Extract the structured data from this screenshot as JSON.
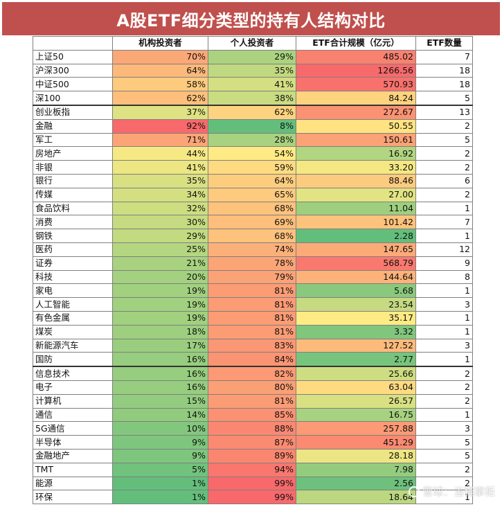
{
  "title": "A股ETF细分类型的持有人结构对比",
  "watermark": "雪球：当铺掌柜",
  "colors": {
    "low": "#63be7b",
    "mid": "#ffeb84",
    "high": "#f8696b"
  },
  "chart_data": {
    "type": "table",
    "title": "A股ETF细分类型的持有人结构对比",
    "columns": [
      "",
      "机构投资者",
      "个人投资者",
      "ETF合计规模（亿元）",
      "ETF数量"
    ],
    "rows": [
      {
        "name": "上证50",
        "inst": "70%",
        "retail": "29%",
        "scale": "485.02",
        "count": "7"
      },
      {
        "name": "沪深300",
        "inst": "64%",
        "retail": "35%",
        "scale": "1266.56",
        "count": "18"
      },
      {
        "name": "中证500",
        "inst": "58%",
        "retail": "41%",
        "scale": "570.93",
        "count": "18"
      },
      {
        "name": "深100",
        "inst": "62%",
        "retail": "38%",
        "scale": "84.24",
        "count": "5"
      },
      {
        "name": "创业板指",
        "inst": "37%",
        "retail": "62%",
        "scale": "272.67",
        "count": "13"
      },
      {
        "name": "金融",
        "inst": "92%",
        "retail": "8%",
        "scale": "50.55",
        "count": "2"
      },
      {
        "name": "军工",
        "inst": "71%",
        "retail": "28%",
        "scale": "150.61",
        "count": "5"
      },
      {
        "name": "房地产",
        "inst": "44%",
        "retail": "54%",
        "scale": "16.92",
        "count": "2"
      },
      {
        "name": "非银",
        "inst": "41%",
        "retail": "59%",
        "scale": "33.20",
        "count": "2"
      },
      {
        "name": "银行",
        "inst": "35%",
        "retail": "64%",
        "scale": "88.46",
        "count": "6"
      },
      {
        "name": "传媒",
        "inst": "34%",
        "retail": "65%",
        "scale": "27.00",
        "count": "2"
      },
      {
        "name": "食品饮料",
        "inst": "32%",
        "retail": "68%",
        "scale": "11.04",
        "count": "1"
      },
      {
        "name": "消费",
        "inst": "30%",
        "retail": "69%",
        "scale": "101.42",
        "count": "7"
      },
      {
        "name": "钢铁",
        "inst": "29%",
        "retail": "68%",
        "scale": "2.28",
        "count": "1"
      },
      {
        "name": "医药",
        "inst": "25%",
        "retail": "74%",
        "scale": "147.65",
        "count": "12"
      },
      {
        "name": "证券",
        "inst": "21%",
        "retail": "78%",
        "scale": "568.79",
        "count": "9"
      },
      {
        "name": "科技",
        "inst": "20%",
        "retail": "79%",
        "scale": "144.64",
        "count": "8"
      },
      {
        "name": "家电",
        "inst": "19%",
        "retail": "81%",
        "scale": "5.68",
        "count": "1"
      },
      {
        "name": "人工智能",
        "inst": "19%",
        "retail": "81%",
        "scale": "23.54",
        "count": "3"
      },
      {
        "name": "有色金属",
        "inst": "19%",
        "retail": "81%",
        "scale": "35.17",
        "count": "1"
      },
      {
        "name": "煤炭",
        "inst": "18%",
        "retail": "81%",
        "scale": "3.32",
        "count": "1"
      },
      {
        "name": "新能源汽车",
        "inst": "17%",
        "retail": "83%",
        "scale": "127.52",
        "count": "3"
      },
      {
        "name": "国防",
        "inst": "16%",
        "retail": "84%",
        "scale": "2.77",
        "count": "1"
      },
      {
        "name": "信息技术",
        "inst": "16%",
        "retail": "82%",
        "scale": "25.66",
        "count": "2"
      },
      {
        "name": "电子",
        "inst": "16%",
        "retail": "80%",
        "scale": "63.04",
        "count": "2"
      },
      {
        "name": "计算机",
        "inst": "15%",
        "retail": "81%",
        "scale": "26.57",
        "count": "2"
      },
      {
        "name": "通信",
        "inst": "14%",
        "retail": "85%",
        "scale": "16.75",
        "count": "1"
      },
      {
        "name": "5G通信",
        "inst": "10%",
        "retail": "88%",
        "scale": "257.88",
        "count": "3"
      },
      {
        "name": "半导体",
        "inst": "9%",
        "retail": "87%",
        "scale": "451.29",
        "count": "5"
      },
      {
        "name": "金融地产",
        "inst": "9%",
        "retail": "89%",
        "scale": "28.18",
        "count": "5"
      },
      {
        "name": "TMT",
        "inst": "5%",
        "retail": "94%",
        "scale": "7.98",
        "count": "2"
      },
      {
        "name": "能源",
        "inst": "1%",
        "retail": "99%",
        "scale": "2.56",
        "count": "2"
      },
      {
        "name": "环保",
        "inst": "1%",
        "retail": "99%",
        "scale": "18.64",
        "count": "1"
      }
    ]
  }
}
